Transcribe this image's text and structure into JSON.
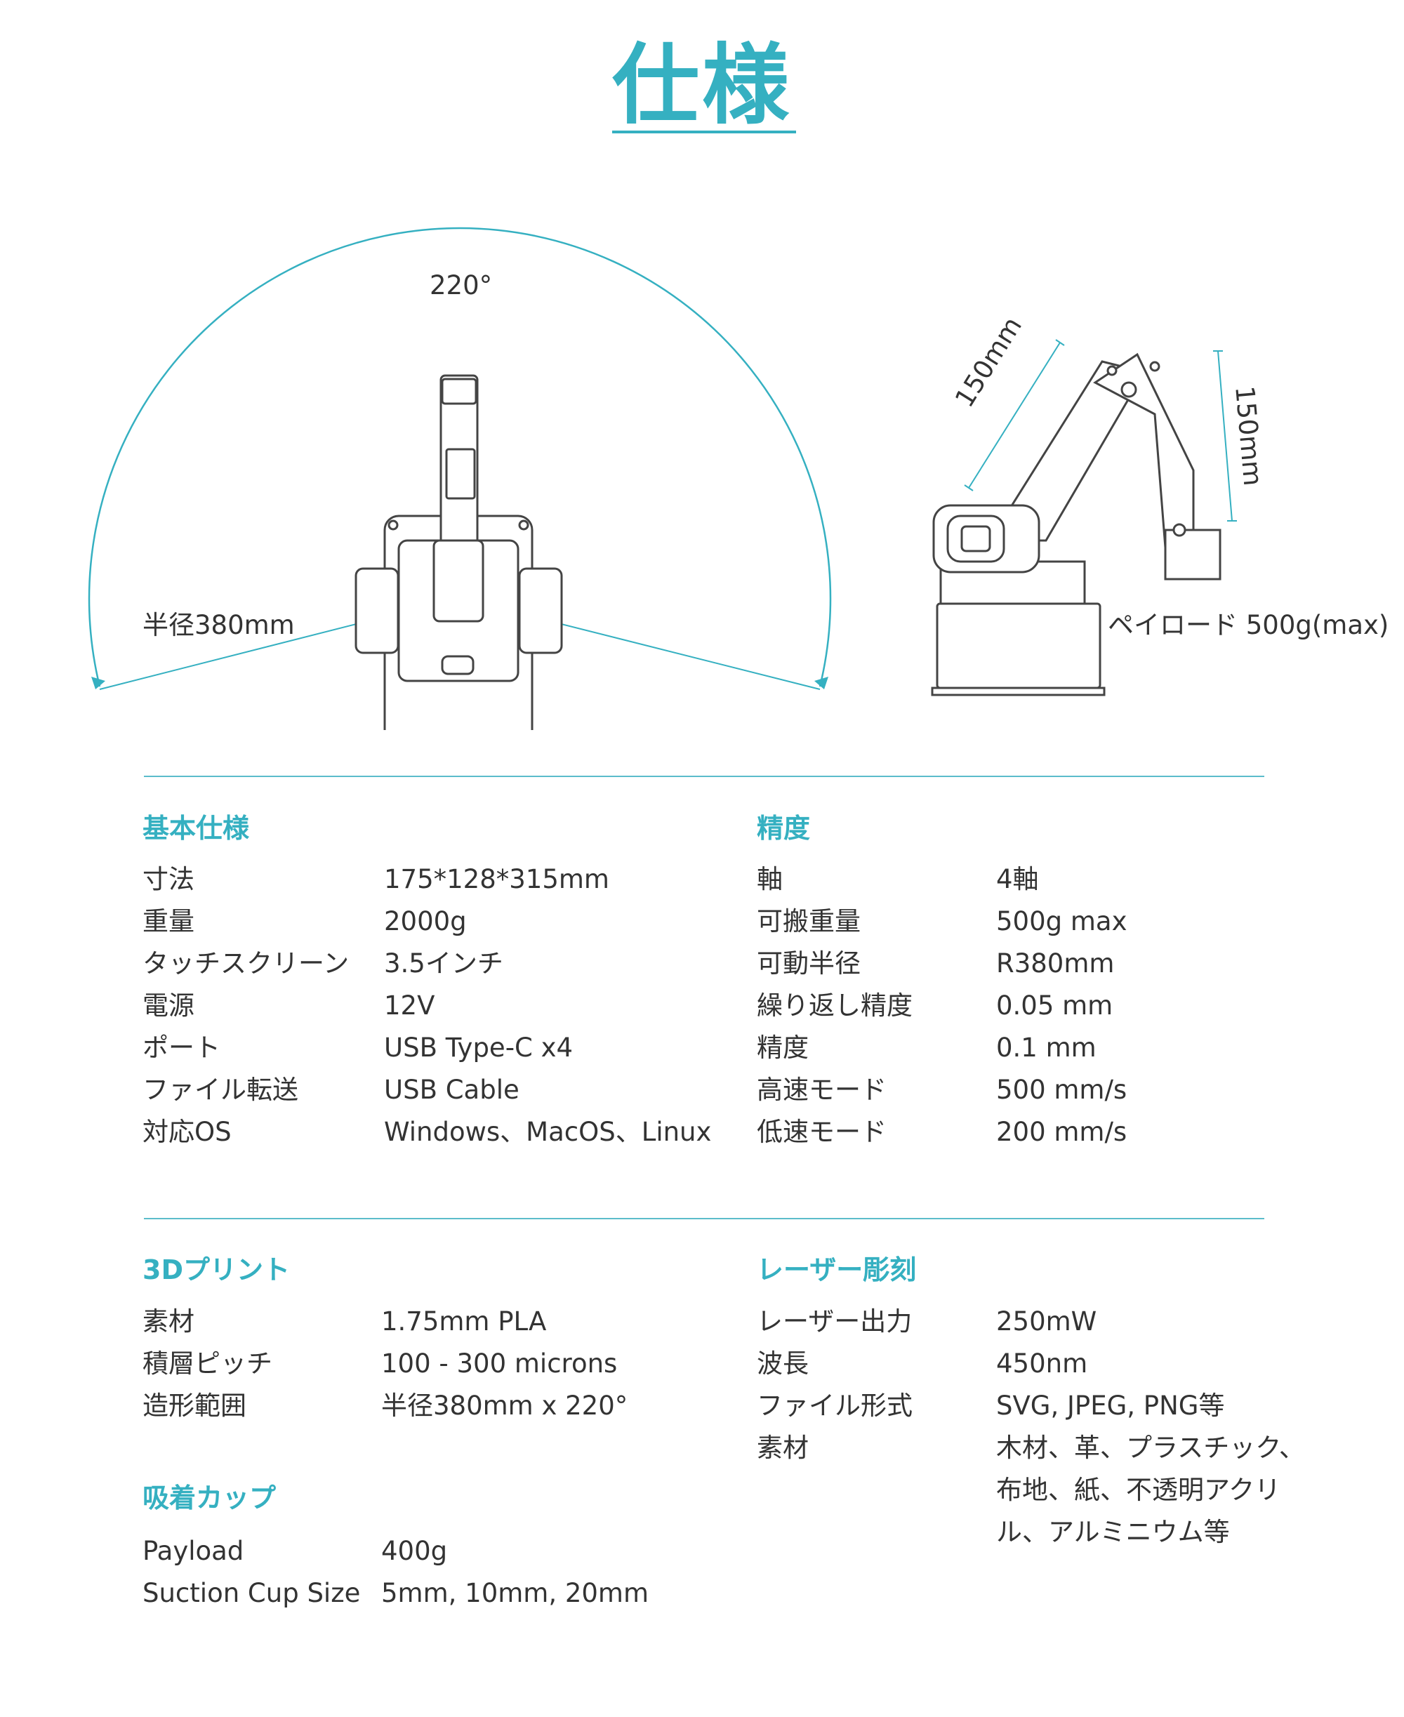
{
  "title": "仕様",
  "diagram": {
    "angle_label": "220°",
    "radius_label": "半径380mm",
    "arm_length_1": "150mm",
    "arm_length_2": "150mm",
    "payload_label": "ペイロード 500g(max)"
  },
  "colors": {
    "accent": "#35b0c1",
    "text": "#333333"
  },
  "sections": {
    "basic": {
      "heading": "基本仕様",
      "rows": [
        {
          "label": "寸法",
          "value": "175*128*315mm"
        },
        {
          "label": "重量",
          "value": "2000g"
        },
        {
          "label": "タッチスクリーン",
          "value": "3.5インチ"
        },
        {
          "label": "電源",
          "value": "12V"
        },
        {
          "label": "ポート",
          "value": "USB Type-C x4"
        },
        {
          "label": "ファイル転送",
          "value": "USB Cable"
        },
        {
          "label": "対応OS",
          "value": "Windows、MacOS、Linux"
        }
      ]
    },
    "precision": {
      "heading": "精度",
      "rows": [
        {
          "label": "軸",
          "value": "4軸"
        },
        {
          "label": "可搬重量",
          "value": "500g max"
        },
        {
          "label": "可動半径",
          "value": "R380mm"
        },
        {
          "label": "繰り返し精度",
          "value": "0.05 mm"
        },
        {
          "label": "精度",
          "value": "0.1 mm"
        },
        {
          "label": "高速モード",
          "value": "500 mm/s"
        },
        {
          "label": "低速モード",
          "value": "200 mm/s"
        }
      ]
    },
    "print3d": {
      "heading": "3Dプリント",
      "rows": [
        {
          "label": "素材",
          "value": "1.75mm PLA"
        },
        {
          "label": "積層ピッチ",
          "value": "100 - 300 microns"
        },
        {
          "label": "造形範囲",
          "value": "半径380mm x 220°"
        }
      ]
    },
    "suction": {
      "heading": "吸着カップ",
      "rows": [
        {
          "label": "Payload",
          "value": "400g"
        },
        {
          "label": "Suction Cup Size",
          "value": "5mm, 10mm, 20mm"
        }
      ]
    },
    "laser": {
      "heading": "レーザー彫刻",
      "rows": [
        {
          "label": "レーザー出力",
          "value": "250mW"
        },
        {
          "label": "波長",
          "value": "450nm"
        },
        {
          "label": "ファイル形式",
          "value": "SVG, JPEG, PNG等"
        },
        {
          "label": "素材",
          "value_lines": [
            "木材、革、プラスチック、",
            "布地、紙、不透明アクリ",
            "ル、アルミニウム等"
          ]
        }
      ]
    }
  }
}
